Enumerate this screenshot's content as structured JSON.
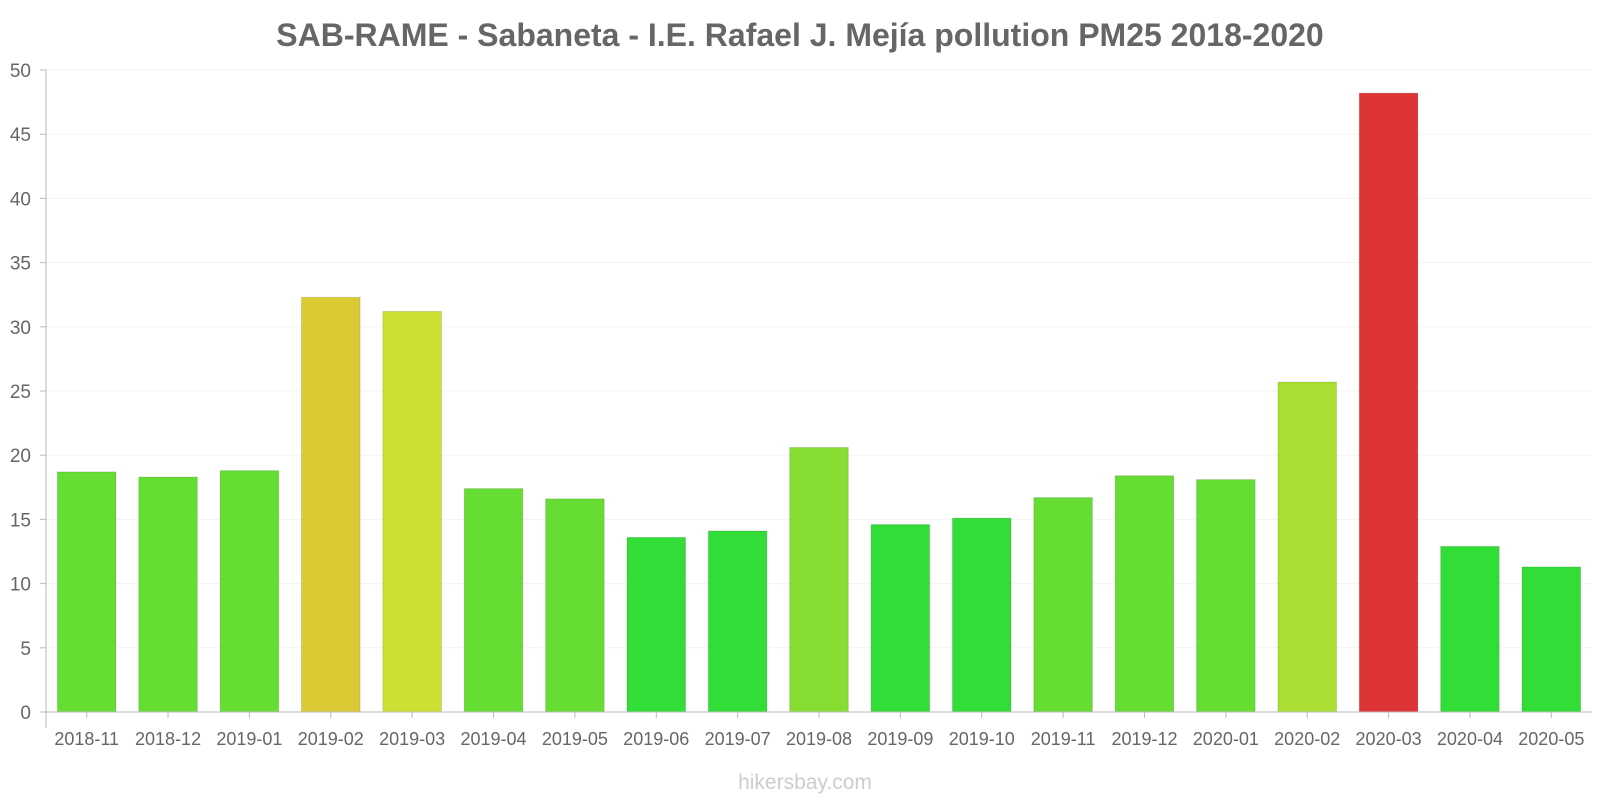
{
  "chart_data": {
    "type": "bar",
    "title": "SAB-RAME - Sabaneta - I.E. Rafael J. Mejía pollution PM25 2018-2020",
    "xlabel": "",
    "ylabel": "",
    "ylim": [
      0,
      50
    ],
    "yticks": [
      0,
      5,
      10,
      15,
      20,
      25,
      30,
      35,
      40,
      45,
      50
    ],
    "grid": true,
    "categories": [
      "2018-11",
      "2018-12",
      "2019-01",
      "2019-02",
      "2019-03",
      "2019-04",
      "2019-05",
      "2019-06",
      "2019-07",
      "2019-08",
      "2019-09",
      "2019-10",
      "2019-11",
      "2019-12",
      "2020-01",
      "2020-02",
      "2020-03",
      "2020-04",
      "2020-05"
    ],
    "values": [
      18.7,
      18.3,
      18.8,
      32.3,
      31.2,
      17.4,
      16.6,
      13.6,
      14.1,
      20.6,
      14.6,
      15.1,
      16.7,
      18.4,
      18.1,
      25.7,
      48.2,
      12.9,
      11.3
    ],
    "colors": [
      "#66dd33",
      "#66dd33",
      "#66dd33",
      "#dbca33",
      "#cddf33",
      "#66dd33",
      "#66dd33",
      "#33dd38",
      "#33dd38",
      "#88dd33",
      "#33dd38",
      "#33dd38",
      "#66dd33",
      "#66dd33",
      "#66dd33",
      "#aade33",
      "#dd3535",
      "#33dd38",
      "#33dd38"
    ]
  },
  "watermark": "hikersbay.com"
}
